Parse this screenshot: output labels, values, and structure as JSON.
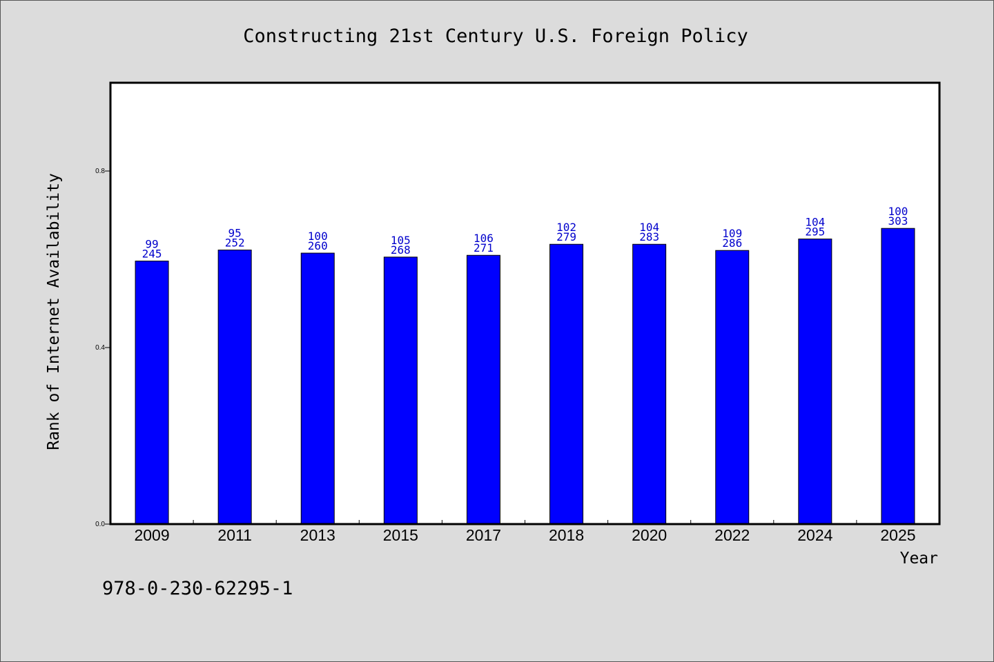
{
  "colors": {
    "bar": "#0000ff",
    "label": "#0000cc",
    "background": "#dcdcdc",
    "plot_background": "#ffffff"
  },
  "footer": {
    "isbn": "978-0-230-62295-1"
  },
  "chart_data": {
    "type": "bar",
    "title": "Constructing 21st Century U.S. Foreign Policy",
    "xlabel": "Year",
    "ylabel": "Rank of Internet Availability",
    "ylim": [
      0,
      1.0
    ],
    "yticks": [
      0.0,
      0.4,
      0.8
    ],
    "ytick_labels": [
      "0.0",
      "0.4",
      "0.8"
    ],
    "grid": false,
    "categories": [
      "2009",
      "2011",
      "2013",
      "2015",
      "2017",
      "2018",
      "2020",
      "2022",
      "2024",
      "2025"
    ],
    "values": [
      0.596,
      0.621,
      0.614,
      0.605,
      0.609,
      0.634,
      0.634,
      0.62,
      0.646,
      0.67
    ],
    "labels_top": [
      "99",
      "95",
      "100",
      "105",
      "106",
      "102",
      "104",
      "109",
      "104",
      "100"
    ],
    "labels_bottom": [
      "245",
      "252",
      "260",
      "268",
      "271",
      "279",
      "283",
      "286",
      "295",
      "303"
    ]
  }
}
